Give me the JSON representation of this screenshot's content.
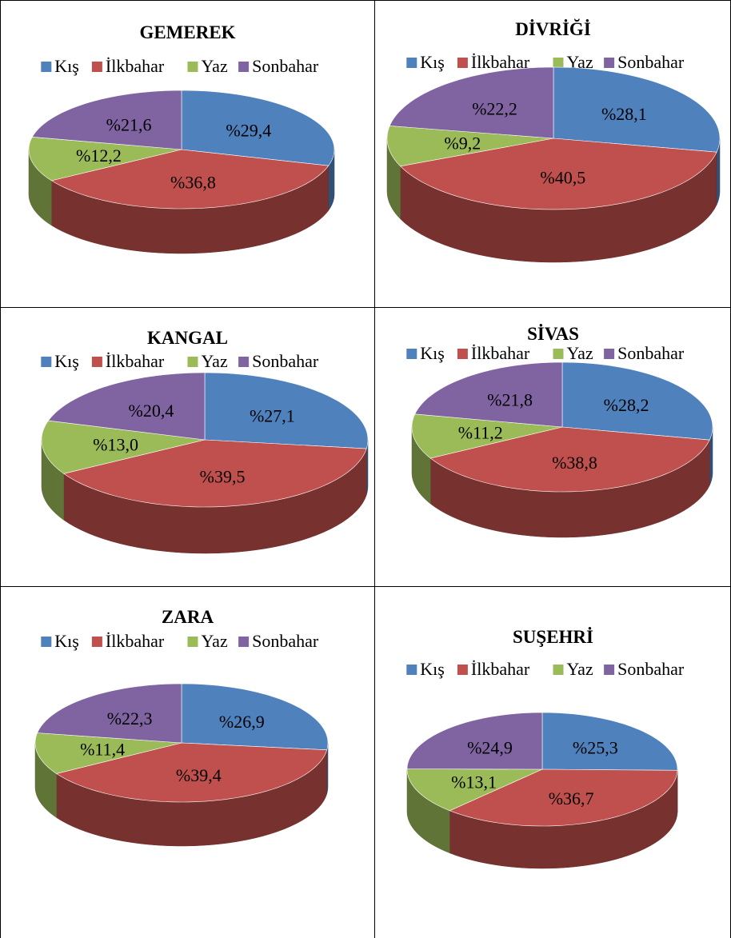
{
  "legend_labels": [
    "Kış",
    "İlkbahar",
    "Yaz",
    "Sonbahar"
  ],
  "colors": {
    "Kış": "#4F81BD",
    "İlkbahar": "#C0504D",
    "Yaz": "#9BBB59",
    "Sonbahar": "#8064A2"
  },
  "chart_data": [
    {
      "type": "pie",
      "title": "GEMEREK",
      "categories": [
        "Kış",
        "İlkbahar",
        "Yaz",
        "Sonbahar"
      ],
      "values": [
        29.4,
        36.8,
        12.2,
        21.6
      ],
      "labels": [
        "%29,4",
        "%36,8",
        "%12,2",
        "%21,6"
      ],
      "legend_position": "top",
      "style": "3d"
    },
    {
      "type": "pie",
      "title": "DİVRİĞİ",
      "categories": [
        "Kış",
        "İlkbahar",
        "Yaz",
        "Sonbahar"
      ],
      "values": [
        28.1,
        40.5,
        9.2,
        22.2
      ],
      "labels": [
        "%28,1",
        "%40,5",
        "%9,2",
        "%22,2"
      ],
      "legend_position": "top",
      "style": "3d"
    },
    {
      "type": "pie",
      "title": "KANGAL",
      "categories": [
        "Kış",
        "İlkbahar",
        "Yaz",
        "Sonbahar"
      ],
      "values": [
        27.1,
        39.5,
        13.0,
        20.4
      ],
      "labels": [
        "%27,1",
        "%39,5",
        "%13,0",
        "%20,4"
      ],
      "legend_position": "top",
      "style": "3d"
    },
    {
      "type": "pie",
      "title": "SİVAS",
      "categories": [
        "Kış",
        "İlkbahar",
        "Yaz",
        "Sonbahar"
      ],
      "values": [
        28.2,
        38.8,
        11.2,
        21.8
      ],
      "labels": [
        "%28,2",
        "%38,8",
        "%11,2",
        "%21,8"
      ],
      "legend_position": "top",
      "style": "3d"
    },
    {
      "type": "pie",
      "title": "ZARA",
      "categories": [
        "Kış",
        "İlkbahar",
        "Yaz",
        "Sonbahar"
      ],
      "values": [
        26.9,
        39.4,
        11.4,
        22.3
      ],
      "labels": [
        "%26,9",
        "%39,4",
        "%11,4",
        "%22,3"
      ],
      "legend_position": "top",
      "style": "3d"
    },
    {
      "type": "pie",
      "title": "SUŞEHRİ",
      "categories": [
        "Kış",
        "İlkbahar",
        "Yaz",
        "Sonbahar"
      ],
      "values": [
        25.3,
        36.7,
        13.1,
        24.9
      ],
      "labels": [
        "%25,3",
        "%36,7",
        "%13,1",
        "%24,9"
      ],
      "legend_position": "top",
      "style": "3d"
    }
  ]
}
